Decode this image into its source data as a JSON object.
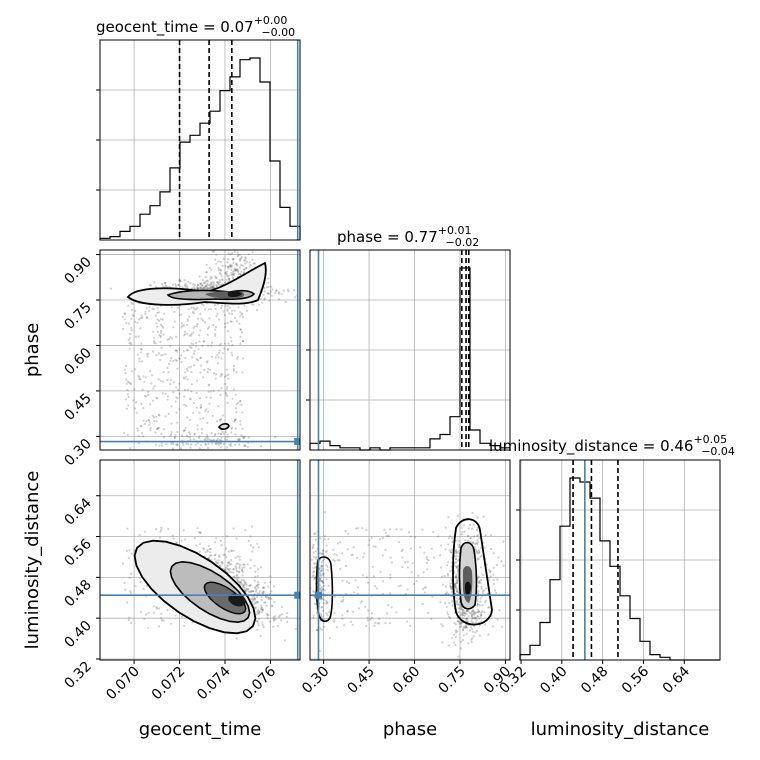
{
  "chart_data": {
    "type": "corner",
    "parameters": [
      "geocent_time",
      "phase",
      "luminosity_distance"
    ],
    "axis_labels": [
      "geocent_time",
      "phase",
      "luminosity_distance"
    ],
    "ranges": [
      [
        0.0685,
        0.0773
      ],
      [
        0.255,
        0.915
      ],
      [
        0.318,
        0.71
      ]
    ],
    "ticks": {
      "geocent_time": {
        "values": [
          0.07,
          0.072,
          0.074,
          0.076
        ],
        "labels": [
          "0.070",
          "0.072",
          "0.074",
          "0.076"
        ]
      },
      "phase": {
        "values": [
          0.3,
          0.45,
          0.6,
          0.75,
          0.9
        ],
        "labels": [
          "0.30",
          "0.45",
          "0.60",
          "0.75",
          "0.90"
        ]
      },
      "luminosity_distance": {
        "values": [
          0.32,
          0.4,
          0.48,
          0.56,
          0.64
        ],
        "labels": [
          "0.32",
          "0.40",
          "0.48",
          "0.56",
          "0.64"
        ]
      }
    },
    "injected": {
      "geocent_time": 0.0772,
      "phase": 0.283,
      "luminosity_distance": 0.445
    },
    "injection_color": "#4682b4",
    "titles": [
      {
        "param": "geocent_time",
        "median": "0.07",
        "plus": "+0.00",
        "minus": "−0.00"
      },
      {
        "param": "phase",
        "median": "0.77",
        "plus": "+0.01",
        "minus": "−0.02"
      },
      {
        "param": "luminosity_distance",
        "median": "0.46",
        "plus": "+0.05",
        "minus": "−0.04"
      }
    ],
    "quantiles": {
      "geocent_time": [
        0.072,
        0.0733,
        0.0743
      ],
      "phase": [
        0.756,
        0.77,
        0.779
      ],
      "luminosity_distance": [
        0.422,
        0.458,
        0.51
      ]
    },
    "histograms": {
      "geocent_time": {
        "edges_start": 0.0685,
        "bin_width": 0.00044,
        "counts": [
          1,
          2,
          5,
          8,
          15,
          20,
          28,
          42,
          57,
          61,
          68,
          75,
          87,
          95,
          105,
          106,
          92,
          46,
          19,
          8,
          0
        ]
      },
      "phase": {
        "edges_start": 0.255,
        "bin_width": 0.033,
        "counts": [
          3,
          4,
          2,
          1,
          1,
          0,
          1,
          0,
          1,
          1,
          1,
          1,
          5,
          7,
          15,
          82,
          9,
          3,
          2,
          1
        ]
      },
      "luminosity_distance": {
        "edges_start": 0.318,
        "bin_width": 0.0196,
        "counts": [
          4,
          11,
          28,
          60,
          100,
          136,
          133,
          121,
          89,
          70,
          48,
          31,
          14,
          4,
          2,
          0,
          0,
          0,
          0,
          0
        ]
      }
    },
    "grid": true,
    "scatter": "gray points",
    "contours": "filled grayscale density with black contours"
  }
}
